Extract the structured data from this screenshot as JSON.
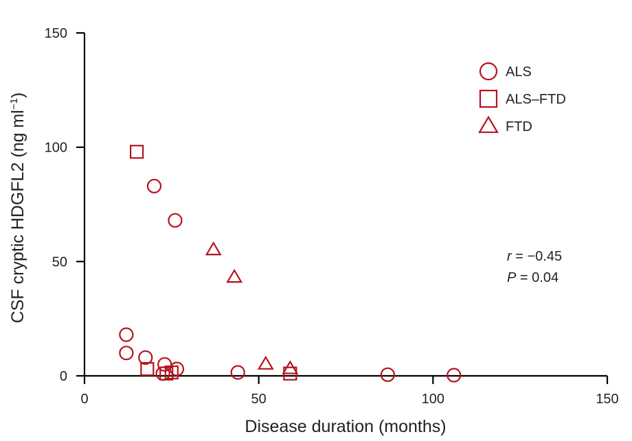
{
  "chart_data": {
    "type": "scatter",
    "xlabel": "Disease duration (months)",
    "ylabel_main": "CSF cryptic HDGFL2 (ng ml",
    "ylabel_sup": "−1",
    "ylabel_close": ")",
    "xlim": [
      0,
      150
    ],
    "ylim": [
      0,
      150
    ],
    "x_ticks": [
      0,
      50,
      100,
      150
    ],
    "y_ticks": [
      0,
      50,
      100,
      150
    ],
    "x_tick_labels": [
      "0",
      "50",
      "100",
      "150"
    ],
    "y_tick_labels": [
      "0",
      "50",
      "100",
      "150"
    ],
    "grid": false,
    "legend_position": "top-right",
    "marker_color": "#b5121b",
    "series": [
      {
        "name": "ALS",
        "marker": "circle",
        "points": [
          [
            20,
            83
          ],
          [
            26,
            68
          ],
          [
            12,
            18
          ],
          [
            12,
            10
          ],
          [
            17.5,
            8
          ],
          [
            23,
            5
          ],
          [
            26.5,
            3
          ],
          [
            22.5,
            1
          ],
          [
            44,
            1.5
          ],
          [
            87,
            0.5
          ],
          [
            106,
            0.3
          ]
        ]
      },
      {
        "name": "ALS–FTD",
        "marker": "square",
        "points": [
          [
            15,
            98
          ],
          [
            18,
            3
          ],
          [
            23.5,
            1
          ],
          [
            25,
            1.5
          ],
          [
            59,
            1
          ]
        ]
      },
      {
        "name": "FTD",
        "marker": "triangle",
        "points": [
          [
            37,
            55
          ],
          [
            43,
            43
          ],
          [
            52,
            5
          ],
          [
            59,
            3
          ]
        ]
      }
    ],
    "annotation": {
      "r_symbol": "r",
      "r_value": " = −0.45",
      "p_symbol": "P",
      "p_value": " = 0.04"
    }
  }
}
